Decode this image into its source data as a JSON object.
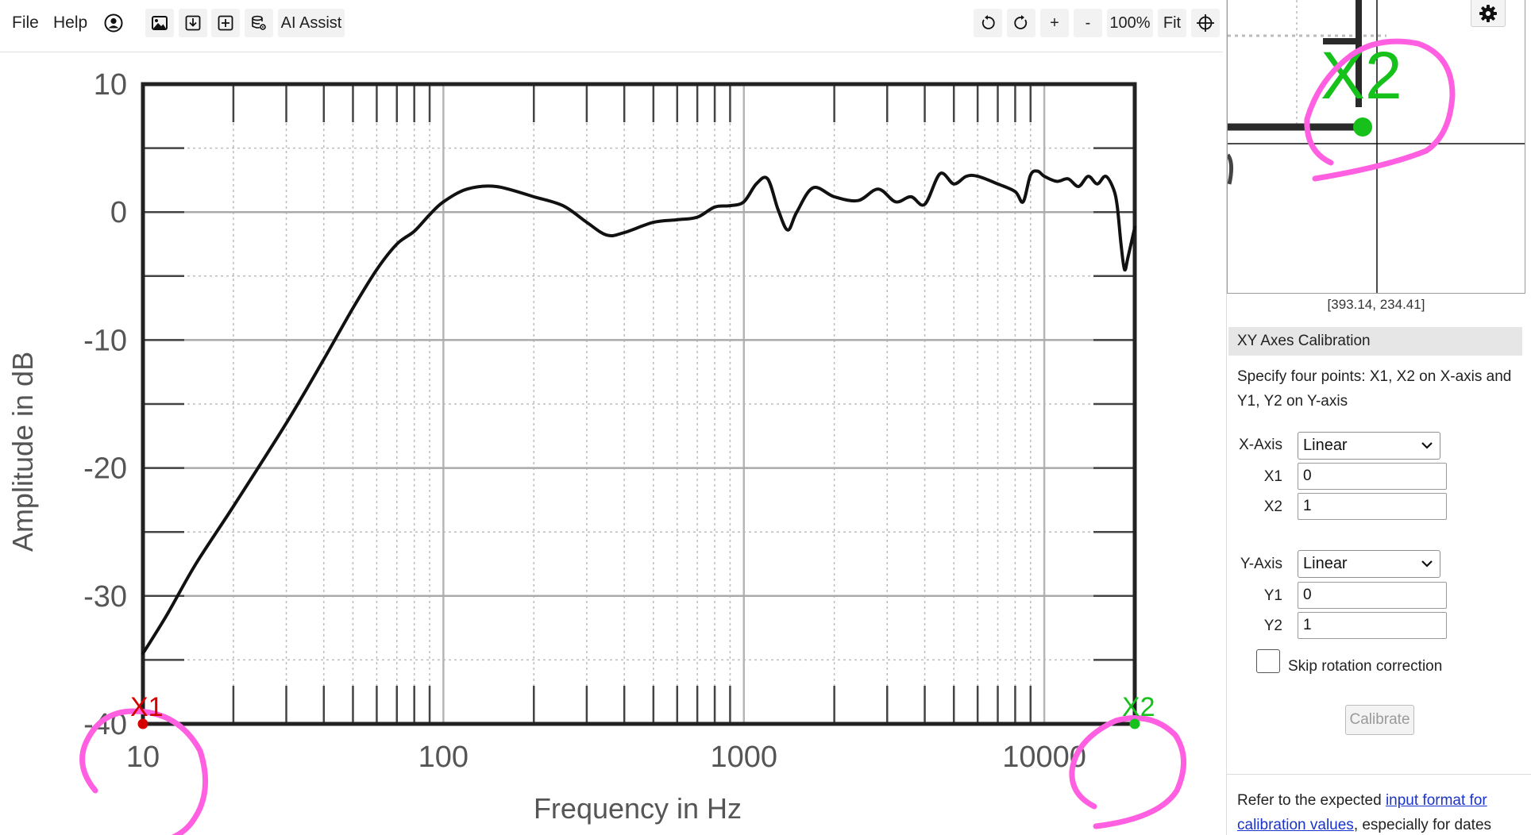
{
  "menu": {
    "file": "File",
    "help": "Help"
  },
  "toolbar": {
    "ai_assist": "AI Assist",
    "zoom_in": "+",
    "zoom_out": "-",
    "zoom_level": "100%",
    "fit": "Fit"
  },
  "chart_data": {
    "type": "line",
    "xlabel": "Frequency in Hz",
    "ylabel": "Amplitude in dB",
    "x_scale": "log",
    "xlim": [
      10,
      20000
    ],
    "ylim": [
      -40,
      10
    ],
    "x_ticks": [
      "10",
      "100",
      "1000",
      "10000"
    ],
    "y_ticks": [
      "10",
      "0",
      "-10",
      "-20",
      "-30",
      "-40"
    ],
    "grid": true,
    "series": [
      {
        "x": [
          10,
          12,
          15,
          20,
          30,
          40,
          50,
          60,
          70,
          80,
          90,
          100,
          120,
          150,
          200,
          250,
          300,
          350,
          400,
          500,
          600,
          700,
          800,
          900,
          1000,
          1100,
          1200,
          1300,
          1400,
          1500,
          1700,
          2000,
          2400,
          2800,
          3200,
          3600,
          4000,
          4500,
          5000,
          5500,
          6000,
          7000,
          8000,
          8500,
          9000,
          9500,
          10000,
          11000,
          12000,
          13000,
          14000,
          15000,
          16000,
          17000,
          17500,
          18000,
          18500,
          19000,
          20000
        ],
        "y": [
          -34.5,
          -31.5,
          -27.5,
          -23,
          -16.5,
          -11.5,
          -7.5,
          -4.5,
          -2.5,
          -1.5,
          -0.2,
          0.8,
          1.8,
          2,
          1.2,
          0.5,
          -0.8,
          -1.8,
          -1.6,
          -0.8,
          -0.6,
          -0.4,
          0.4,
          0.5,
          0.8,
          2.2,
          2.6,
          0.2,
          -1.4,
          0,
          1.9,
          1.2,
          0.9,
          1.8,
          0.8,
          1.2,
          0.6,
          3.0,
          2.2,
          2.8,
          2.8,
          2.2,
          1.6,
          0.8,
          2.9,
          3.2,
          2.8,
          2.4,
          2.6,
          2.0,
          2.8,
          2.2,
          2.8,
          1.8,
          0.4,
          -2.5,
          -4.5,
          -3.5,
          -1.2
        ]
      }
    ],
    "points": [
      {
        "label": "X1",
        "x": 10,
        "y": -40,
        "color": "#d40000"
      },
      {
        "label": "X2",
        "x": 20000,
        "y": -40,
        "color": "#16c11c"
      }
    ]
  },
  "magnifier": {
    "label": "X2",
    "coords": "[393.14, 234.41]"
  },
  "calibration": {
    "header": "XY Axes Calibration",
    "description": "Specify four points: X1, X2 on X-axis and Y1, Y2 on Y-axis",
    "x_axis_label": "X-Axis",
    "x_axis_value": "Linear",
    "x1_label": "X1",
    "x1_value": "0",
    "x2_label": "X2",
    "x2_value": "1",
    "y_axis_label": "Y-Axis",
    "y_axis_value": "Linear",
    "y1_label": "Y1",
    "y1_value": "0",
    "y2_label": "Y2",
    "y2_value": "1",
    "skip_label": "Skip rotation correction",
    "calibrate_label": "Calibrate",
    "refer_prefix": "Refer to the expected ",
    "refer_link": "input format for calibration values",
    "refer_suffix": ", especially for dates"
  },
  "colors": {
    "annotation": "#ff5fe0",
    "x1": "#d40000",
    "x2": "#16c11c",
    "link": "#1a33cc"
  }
}
